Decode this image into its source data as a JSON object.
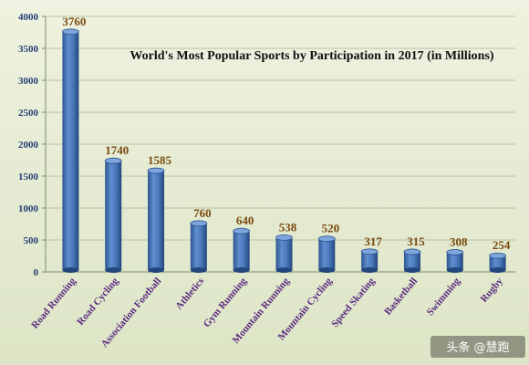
{
  "chart_data": {
    "type": "bar",
    "title": "World's Most Popular Sports by Participation in 2017 (in Millions)",
    "xlabel": "",
    "ylabel": "",
    "ylim": [
      0,
      4000
    ],
    "yticks": [
      0,
      500,
      1000,
      1500,
      2000,
      2500,
      3000,
      3500,
      4000
    ],
    "grid": true,
    "legend": "none",
    "categories": [
      "Road Running",
      "Road Cycling",
      "Association Football",
      "Athletics",
      "Gym Running",
      "Mountain Running",
      "Mountain Cycling",
      "Speed Skating",
      "Basketball",
      "Swimming",
      "Rugby"
    ],
    "values": [
      3760,
      1740,
      1585,
      760,
      640,
      538,
      520,
      317,
      315,
      308,
      254
    ],
    "bar_color": "#3f6fb5",
    "background_color": "#e6ecd4"
  },
  "watermark": {
    "text": "头条 @慧跑"
  }
}
